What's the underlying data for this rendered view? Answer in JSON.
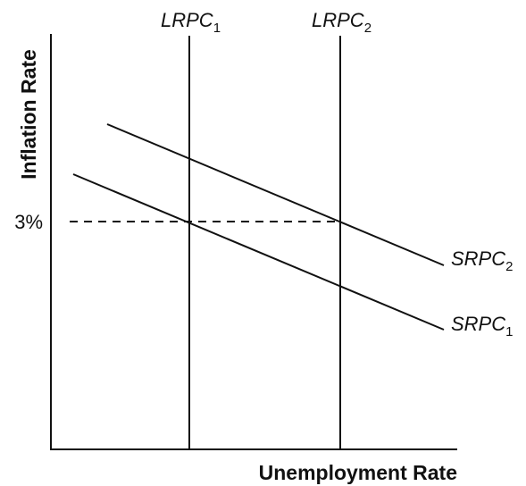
{
  "axes": {
    "y_label": "Inflation Rate",
    "x_label": "Unemployment Rate"
  },
  "curves": [
    {
      "label": "LRPC",
      "subscript": "1"
    },
    {
      "label": "LRPC",
      "subscript": "2"
    },
    {
      "label": "SRPC",
      "subscript": "1"
    },
    {
      "label": "SRPC",
      "subscript": "2"
    }
  ],
  "level_label": "3%"
}
